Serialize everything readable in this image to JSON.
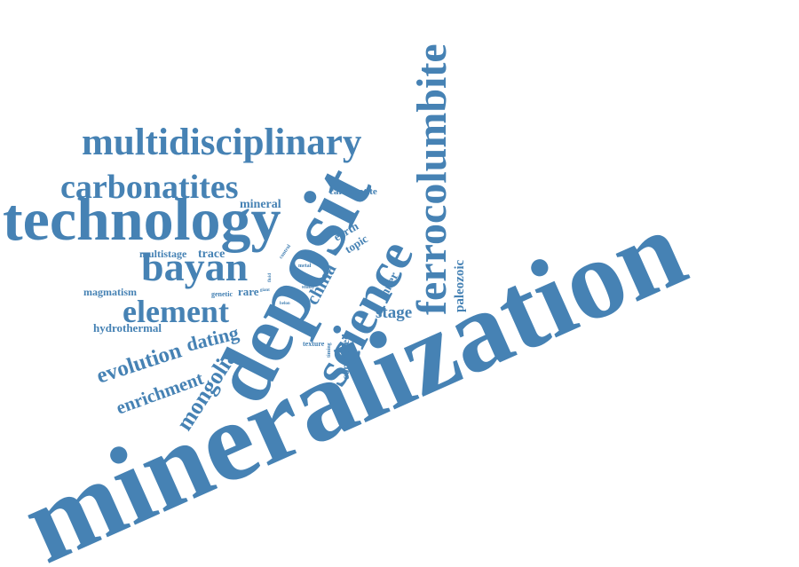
{
  "word_cloud": {
    "color": "#4682b4",
    "words": [
      {
        "id": "mineralization",
        "text": "mineralization",
        "orientation": "diagonal"
      },
      {
        "id": "deposit",
        "text": "deposit",
        "orientation": "diagonal"
      },
      {
        "id": "technology",
        "text": "technology",
        "orientation": "horizontal"
      },
      {
        "id": "multidisciplinary",
        "text": "multidisciplinary",
        "orientation": "horizontal"
      },
      {
        "id": "ferrocolumbite",
        "text": "ferrocolumbite",
        "orientation": "vertical"
      },
      {
        "id": "science",
        "text": "science",
        "orientation": "diagonal"
      },
      {
        "id": "carbonatites",
        "text": "carbonatites",
        "orientation": "horizontal"
      },
      {
        "id": "bayan",
        "text": "bayan",
        "orientation": "horizontal"
      },
      {
        "id": "element",
        "text": "element",
        "orientation": "horizontal"
      },
      {
        "id": "mongolia",
        "text": "mongolia",
        "orientation": "diagonal"
      },
      {
        "id": "evolution",
        "text": "evolution",
        "orientation": "diagonal"
      },
      {
        "id": "enrichment",
        "text": "enrichment",
        "orientation": "diagonal"
      },
      {
        "id": "dating",
        "text": "dating",
        "orientation": "diagonal"
      },
      {
        "id": "stage",
        "text": "stage",
        "orientation": "horizontal"
      },
      {
        "id": "china",
        "text": "china",
        "orientation": "diagonal"
      },
      {
        "id": "paleozoic",
        "text": "paleozoic",
        "orientation": "vertical"
      },
      {
        "id": "inner",
        "text": "inner",
        "orientation": "diagonal"
      },
      {
        "id": "hydrothermal",
        "text": "hydrothermal",
        "orientation": "horizontal"
      },
      {
        "id": "magmatism",
        "text": "magmatism",
        "orientation": "horizontal"
      },
      {
        "id": "multistage",
        "text": "multistage",
        "orientation": "horizontal"
      },
      {
        "id": "trace",
        "text": "trace",
        "orientation": "horizontal"
      },
      {
        "id": "mineral",
        "text": "mineral",
        "orientation": "horizontal"
      },
      {
        "id": "carbonatite",
        "text": "carbonatite",
        "orientation": "horizontal"
      },
      {
        "id": "earth",
        "text": "earth",
        "orientation": "diagonal"
      },
      {
        "id": "topic",
        "text": "topic",
        "orientation": "diagonal"
      },
      {
        "id": "rare",
        "text": "rare",
        "orientation": "horizontal"
      },
      {
        "id": "genetic",
        "text": "genetic",
        "orientation": "horizontal"
      },
      {
        "id": "controlled",
        "text": "controlled",
        "orientation": "vertical"
      },
      {
        "id": "texture",
        "text": "texture",
        "orientation": "horizontal"
      },
      {
        "id": "metal",
        "text": "metal",
        "orientation": "horizontal"
      },
      {
        "id": "study",
        "text": "study",
        "orientation": "horizontal"
      },
      {
        "id": "control",
        "text": "control",
        "orientation": "diagonal"
      },
      {
        "id": "giant",
        "text": "giant",
        "orientation": "horizontal"
      },
      {
        "id": "belon",
        "text": "belon",
        "orientation": "horizontal"
      },
      {
        "id": "timing",
        "text": "timing",
        "orientation": "vertical"
      },
      {
        "id": "fluid",
        "text": "fluid",
        "orientation": "vertical"
      }
    ]
  }
}
